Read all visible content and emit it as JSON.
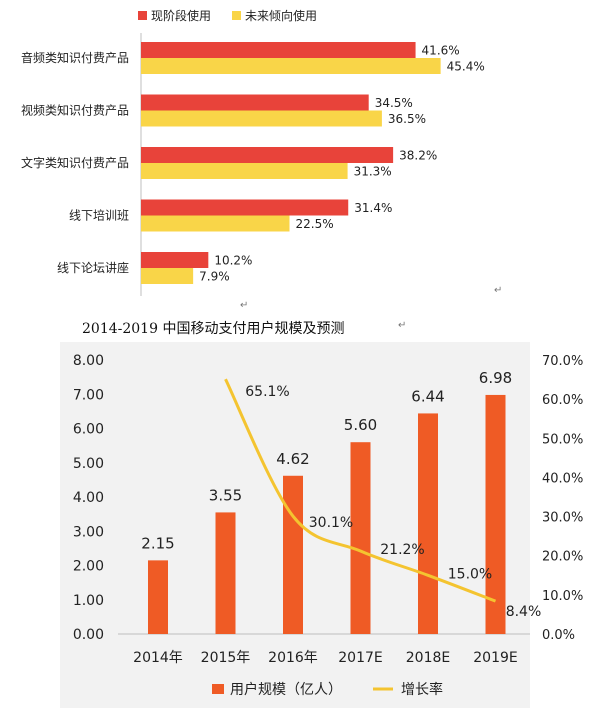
{
  "chart_data": [
    {
      "type": "bar",
      "orientation": "horizontal",
      "categories": [
        "音频类知识付费产品",
        "视频类知识付费产品",
        "文字类知识付费产品",
        "线下培训班",
        "线下论坛讲座"
      ],
      "series": [
        {
          "name": "现阶段使用",
          "values": [
            41.6,
            34.5,
            38.2,
            31.4,
            10.2
          ],
          "labels": [
            "41.6%",
            "34.5%",
            "38.2%",
            "31.4%",
            "10.2%"
          ],
          "color": "#e8433a"
        },
        {
          "name": "未来倾向使用",
          "values": [
            45.4,
            36.5,
            31.3,
            22.5,
            7.9
          ],
          "labels": [
            "45.4%",
            "36.5%",
            "31.3%",
            "22.5%",
            "7.9%"
          ],
          "color": "#f9d548"
        }
      ],
      "legend": "top-left",
      "grid": false
    },
    {
      "type": "bar+line",
      "title": "2014-2019 中国移动支付用户规模及预测",
      "categories": [
        "2014年",
        "2015年",
        "2016年",
        "2017E",
        "2018E",
        "2019E"
      ],
      "bar_series": {
        "name": "用户规模（亿人）",
        "values": [
          2.15,
          3.55,
          4.62,
          5.6,
          6.44,
          6.98
        ],
        "labels": [
          "2.15",
          "3.55",
          "4.62",
          "5.60",
          "6.44",
          "6.98"
        ],
        "color": "#ef5b25"
      },
      "line_series": {
        "name": "增长率",
        "values": [
          null,
          65.1,
          30.1,
          21.2,
          15.0,
          8.4
        ],
        "labels": [
          "",
          "65.1%",
          "30.1%",
          "21.2%",
          "15.0%",
          "8.4%"
        ],
        "color": "#f4c430"
      },
      "y_left": {
        "range": [
          0,
          8
        ],
        "ticks": [
          "0.00",
          "1.00",
          "2.00",
          "3.00",
          "4.00",
          "5.00",
          "6.00",
          "7.00",
          "8.00"
        ]
      },
      "y_right": {
        "range": [
          0,
          70
        ],
        "ticks": [
          "0.0%",
          "10.0%",
          "20.0%",
          "30.0%",
          "40.0%",
          "50.0%",
          "60.0%",
          "70.0%"
        ]
      },
      "legend": "bottom",
      "background": "#f2f2f2"
    }
  ]
}
